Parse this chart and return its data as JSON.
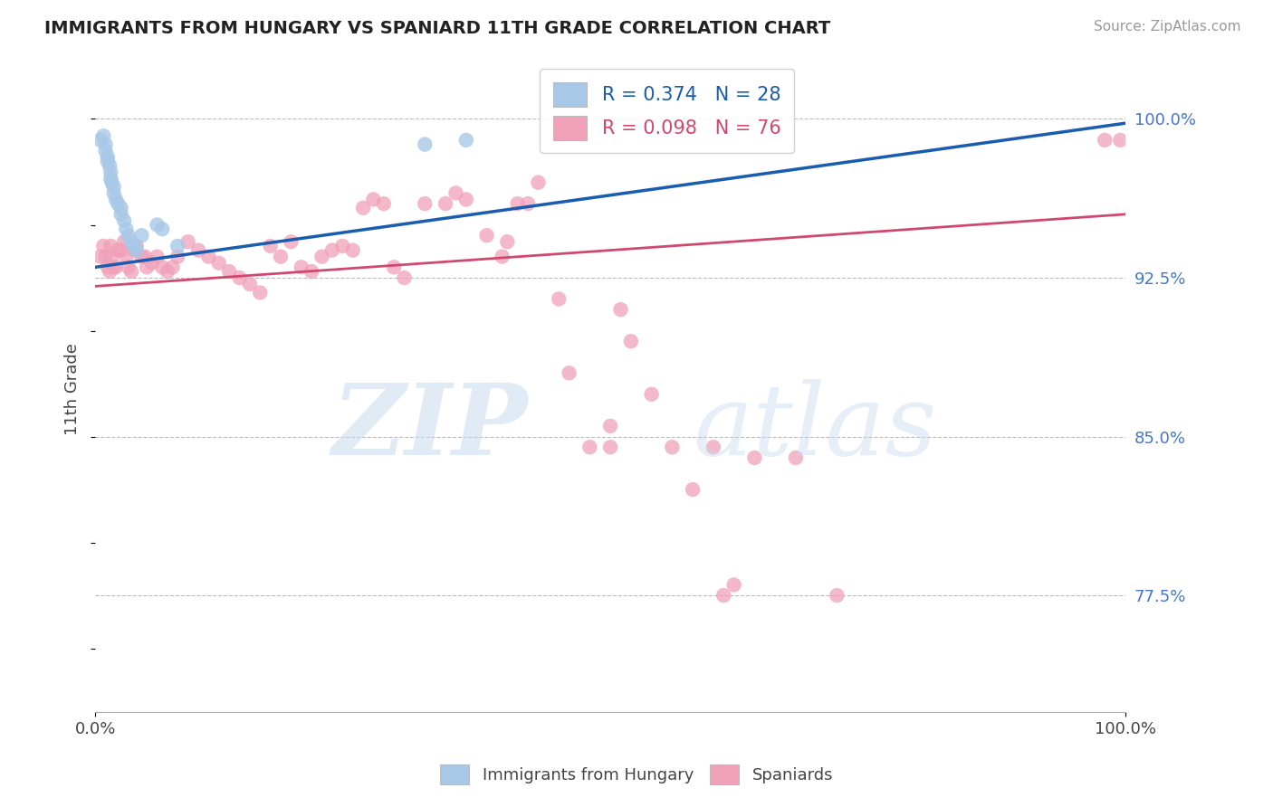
{
  "title": "IMMIGRANTS FROM HUNGARY VS SPANIARD 11TH GRADE CORRELATION CHART",
  "source_text": "Source: ZipAtlas.com",
  "ylabel": "11th Grade",
  "xlim": [
    0.0,
    1.0
  ],
  "ylim": [
    0.72,
    1.025
  ],
  "yticks": [
    1.0,
    0.925,
    0.85,
    0.775
  ],
  "ytick_labels": [
    "100.0%",
    "92.5%",
    "85.0%",
    "77.5%"
  ],
  "xticks": [
    0.0,
    1.0
  ],
  "xtick_labels": [
    "0.0%",
    "100.0%"
  ],
  "blue_R": 0.374,
  "blue_N": 28,
  "pink_R": 0.098,
  "pink_N": 76,
  "blue_color": "#A8C8E8",
  "pink_color": "#F0A0B8",
  "blue_line_color": "#1A5CB0",
  "pink_line_color": "#D04870",
  "legend_label_blue": "Immigrants from Hungary",
  "legend_label_pink": "Spaniards",
  "blue_x": [
    0.005,
    0.008,
    0.01,
    0.01,
    0.012,
    0.012,
    0.014,
    0.015,
    0.015,
    0.016,
    0.018,
    0.018,
    0.02,
    0.022,
    0.025,
    0.025,
    0.028,
    0.03,
    0.032,
    0.035,
    0.038,
    0.04,
    0.045,
    0.06,
    0.065,
    0.08,
    0.32,
    0.36
  ],
  "blue_y": [
    0.99,
    0.992,
    0.988,
    0.985,
    0.982,
    0.98,
    0.978,
    0.975,
    0.972,
    0.97,
    0.968,
    0.965,
    0.962,
    0.96,
    0.958,
    0.955,
    0.952,
    0.948,
    0.945,
    0.942,
    0.94,
    0.938,
    0.945,
    0.95,
    0.948,
    0.94,
    0.988,
    0.99
  ],
  "pink_x": [
    0.005,
    0.008,
    0.01,
    0.012,
    0.014,
    0.015,
    0.016,
    0.018,
    0.02,
    0.022,
    0.025,
    0.028,
    0.03,
    0.032,
    0.035,
    0.038,
    0.04,
    0.045,
    0.048,
    0.05,
    0.055,
    0.06,
    0.065,
    0.07,
    0.075,
    0.08,
    0.09,
    0.1,
    0.11,
    0.12,
    0.13,
    0.14,
    0.15,
    0.16,
    0.17,
    0.18,
    0.19,
    0.2,
    0.21,
    0.22,
    0.23,
    0.24,
    0.25,
    0.26,
    0.27,
    0.28,
    0.29,
    0.3,
    0.32,
    0.34,
    0.35,
    0.36,
    0.38,
    0.395,
    0.4,
    0.41,
    0.42,
    0.43,
    0.45,
    0.46,
    0.48,
    0.5,
    0.5,
    0.51,
    0.52,
    0.54,
    0.56,
    0.58,
    0.6,
    0.61,
    0.62,
    0.64,
    0.68,
    0.72,
    0.98,
    0.995
  ],
  "pink_y": [
    0.935,
    0.94,
    0.935,
    0.93,
    0.928,
    0.94,
    0.935,
    0.93,
    0.93,
    0.938,
    0.938,
    0.942,
    0.935,
    0.93,
    0.928,
    0.938,
    0.94,
    0.935,
    0.935,
    0.93,
    0.932,
    0.935,
    0.93,
    0.928,
    0.93,
    0.935,
    0.942,
    0.938,
    0.935,
    0.932,
    0.928,
    0.925,
    0.922,
    0.918,
    0.94,
    0.935,
    0.942,
    0.93,
    0.928,
    0.935,
    0.938,
    0.94,
    0.938,
    0.958,
    0.962,
    0.96,
    0.93,
    0.925,
    0.96,
    0.96,
    0.965,
    0.962,
    0.945,
    0.935,
    0.942,
    0.96,
    0.96,
    0.97,
    0.915,
    0.88,
    0.845,
    0.845,
    0.855,
    0.91,
    0.895,
    0.87,
    0.845,
    0.825,
    0.845,
    0.775,
    0.78,
    0.84,
    0.84,
    0.775,
    0.99,
    0.99
  ]
}
